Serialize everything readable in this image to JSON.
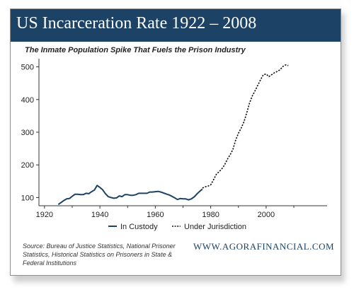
{
  "header": {
    "title": "US Incarceration Rate 1922 – 2008",
    "subtitle": "The Inmate Population Spike That Fuels the Prison Industry"
  },
  "footer": {
    "source": "Source:  Bureau of Justice Statistics, National Prisoner Statistics, Historical Statistics on Prisoners in State & Federal Institutions",
    "website": "WWW.AGORAFINANCIAL.COM"
  },
  "colors": {
    "banner": "#1c4266",
    "line": "#1c4266",
    "dotted": "#111111"
  },
  "chart_data": {
    "type": "line",
    "title": "US Incarceration Rate 1922 – 2008",
    "subtitle": "The Inmate Population Spike That Fuels the Prison Industry",
    "xlabel": "",
    "ylabel": "",
    "xlim": [
      1918,
      2022
    ],
    "ylim": [
      75,
      525
    ],
    "xticks": [
      1920,
      1940,
      1960,
      1980,
      2000
    ],
    "yticks": [
      100,
      200,
      300,
      400,
      500
    ],
    "grid": false,
    "legend_position": "bottom",
    "series": [
      {
        "name": "In Custody",
        "style": "solid",
        "x": [
          1925,
          1927,
          1928,
          1929,
          1930,
          1931,
          1932,
          1933,
          1934,
          1935,
          1936,
          1937,
          1938,
          1939,
          1940,
          1941,
          1942,
          1943,
          1944,
          1945,
          1946,
          1947,
          1948,
          1949,
          1950,
          1951,
          1952,
          1953,
          1954,
          1955,
          1956,
          1957,
          1958,
          1959,
          1960,
          1961,
          1962,
          1963,
          1964,
          1965,
          1966,
          1967,
          1968,
          1969,
          1970,
          1971,
          1972,
          1973,
          1974,
          1975,
          1976,
          1977
        ],
        "values": [
          79,
          91,
          96,
          97,
          104,
          110,
          110,
          109,
          109,
          113,
          112,
          118,
          123,
          137,
          131,
          124,
          112,
          103,
          100,
          98,
          99,
          105,
          103,
          109,
          109,
          107,
          107,
          109,
          113,
          113,
          113,
          113,
          117,
          117,
          118,
          119,
          117,
          114,
          111,
          108,
          104,
          99,
          94,
          97,
          96,
          96,
          93,
          96,
          102,
          111,
          119,
          126
        ]
      },
      {
        "name": "Under Jurisdiction",
        "style": "dotted",
        "x": [
          1977,
          1978,
          1979,
          1980,
          1981,
          1982,
          1983,
          1984,
          1985,
          1986,
          1987,
          1988,
          1989,
          1990,
          1991,
          1992,
          1993,
          1994,
          1995,
          1996,
          1997,
          1998,
          1999,
          2000,
          2001,
          2002,
          2003,
          2004,
          2005,
          2006,
          2007,
          2008
        ],
        "values": [
          129,
          133,
          135,
          139,
          154,
          171,
          179,
          188,
          200,
          217,
          231,
          247,
          276,
          297,
          313,
          332,
          359,
          389,
          411,
          427,
          444,
          461,
          476,
          478,
          470,
          476,
          482,
          486,
          491,
          501,
          506,
          504
        ]
      }
    ]
  }
}
